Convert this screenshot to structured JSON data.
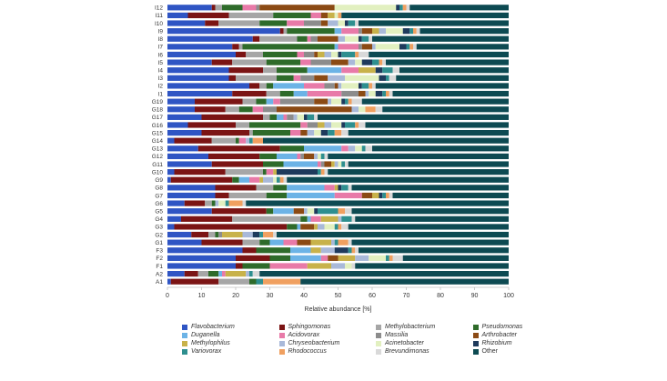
{
  "chart_data": {
    "type": "bar",
    "orientation": "horizontal",
    "stacked": true,
    "title": "",
    "xlabel": "Relative abundance [%]",
    "ylabel": "",
    "xlim": [
      0,
      100
    ],
    "xticks": [
      0,
      10,
      20,
      30,
      40,
      50,
      60,
      70,
      80,
      90,
      100
    ],
    "categories": [
      "I12",
      "I11",
      "I10",
      "I9",
      "I8",
      "I7",
      "I6",
      "I5",
      "I4",
      "I3",
      "I2",
      "I1",
      "G19",
      "G18",
      "G17",
      "G16",
      "G15",
      "G14",
      "G13",
      "G12",
      "G11",
      "G10",
      "G9",
      "G8",
      "G7",
      "G6",
      "G5",
      "G4",
      "G3",
      "G2",
      "G1",
      "F3",
      "F2",
      "F1",
      "A2",
      "A1"
    ],
    "series": [
      {
        "name": "Flavobacterium",
        "color": "#2f55c4",
        "values": [
          13,
          6,
          11,
          33,
          25,
          19,
          20,
          13,
          18,
          18,
          24,
          19,
          8,
          8,
          10,
          6,
          10,
          2,
          9,
          12,
          13,
          2,
          1,
          14,
          14,
          5,
          13,
          4,
          2,
          7,
          10,
          22,
          20,
          20,
          5,
          1
        ]
      },
      {
        "name": "Sphingomonas",
        "color": "#7b1414",
        "values": [
          1,
          12,
          4,
          1,
          2,
          2,
          3,
          6,
          10,
          2,
          3,
          10,
          14,
          9,
          18,
          14,
          14,
          11,
          24,
          15,
          15,
          15,
          18,
          12,
          4,
          6,
          16,
          15,
          33,
          5,
          12,
          4,
          10,
          2,
          4,
          14
        ]
      },
      {
        "name": "Methylobacterium",
        "color": "#a6a6a6",
        "values": [
          2,
          13,
          12,
          1,
          11,
          1,
          5,
          10,
          4,
          12,
          2,
          4,
          4,
          4,
          2,
          4,
          1,
          7,
          0,
          0,
          0,
          11,
          0,
          5,
          11,
          2,
          0,
          20,
          0,
          2,
          5,
          0,
          0,
          0,
          3,
          9
        ]
      },
      {
        "name": "Pseudomonas",
        "color": "#2e6b2a",
        "values": [
          6,
          11,
          8,
          14,
          3,
          27,
          10,
          10,
          9,
          5,
          2,
          4,
          3,
          4,
          2,
          15,
          11,
          1,
          7,
          5,
          6,
          1,
          2,
          4,
          6,
          1,
          2,
          2,
          3,
          1,
          3,
          10,
          6,
          8,
          3,
          2
        ]
      },
      {
        "name": "Duganella",
        "color": "#6cb3e6",
        "values": [
          0,
          0,
          0,
          2,
          0,
          1,
          0,
          0,
          10,
          0,
          9,
          4,
          2,
          0,
          2,
          0,
          0,
          0,
          11,
          6,
          10,
          0,
          3,
          11,
          14,
          0,
          6,
          1,
          1,
          0,
          4,
          6,
          9,
          0,
          1,
          0
        ]
      },
      {
        "name": "Acidovorax",
        "color": "#e87aa8",
        "values": [
          4,
          3,
          5,
          5,
          1,
          6,
          2,
          3,
          5,
          2,
          6,
          10,
          2,
          3,
          1,
          2,
          3,
          2,
          2,
          1,
          1,
          2,
          3,
          3,
          8,
          0,
          0,
          3,
          0,
          0,
          4,
          0,
          2,
          11,
          1,
          0
        ]
      },
      {
        "name": "Massilia",
        "color": "#8c8c8c",
        "values": [
          1,
          0,
          5,
          1,
          2,
          1,
          3,
          6,
          0,
          4,
          3,
          5,
          10,
          4,
          2,
          3,
          0,
          0,
          0,
          1,
          1,
          0,
          0,
          0,
          0,
          0,
          0,
          0,
          0,
          1,
          0,
          0,
          0,
          0,
          0,
          0
        ]
      },
      {
        "name": "Arthrobacter",
        "color": "#8b4a14",
        "values": [
          22,
          2,
          2,
          3,
          6,
          3,
          1,
          5,
          0,
          4,
          1,
          2,
          4,
          22,
          0,
          0,
          2,
          0,
          0,
          3,
          2,
          0,
          0,
          0,
          3,
          0,
          3,
          0,
          4,
          0,
          4,
          0,
          3,
          0,
          0,
          0
        ]
      },
      {
        "name": "Methylophilus",
        "color": "#c8b24a",
        "values": [
          0,
          2,
          0,
          2,
          0,
          0,
          2,
          0,
          5,
          0,
          0,
          0,
          0,
          0,
          0,
          2,
          0,
          0,
          0,
          0,
          1,
          1,
          1,
          1,
          2,
          0,
          0,
          5,
          1,
          6,
          6,
          3,
          5,
          7,
          6,
          0
        ]
      },
      {
        "name": "Chryseobacterium",
        "color": "#a9b9d9",
        "values": [
          0,
          0,
          3,
          2,
          2,
          1,
          2,
          2,
          0,
          5,
          1,
          1,
          1,
          2,
          1,
          2,
          2,
          1,
          2,
          1,
          1,
          0,
          3,
          0,
          0,
          1,
          1,
          1,
          2,
          3,
          1,
          4,
          4,
          4,
          1,
          0
        ]
      },
      {
        "name": "Acinetobacter",
        "color": "#e2f0c0",
        "values": [
          18,
          1,
          2,
          5,
          4,
          7,
          2,
          2,
          0,
          10,
          5,
          2,
          3,
          2,
          2,
          3,
          2,
          0,
          2,
          1,
          1,
          0,
          1,
          0,
          0,
          2,
          2,
          0,
          3,
          0,
          0,
          0,
          5,
          2,
          0,
          0
        ]
      },
      {
        "name": "Rhizobium",
        "color": "#1e3a5c",
        "values": [
          1,
          0,
          1,
          2,
          1,
          2,
          1,
          3,
          2,
          2,
          1,
          2,
          1,
          0,
          1,
          1,
          2,
          0,
          0,
          0,
          0,
          12,
          0,
          1,
          1,
          0,
          1,
          0,
          0,
          2,
          0,
          4,
          0,
          0,
          0,
          0
        ]
      },
      {
        "name": "Variovorax",
        "color": "#2e8f8f",
        "values": [
          1,
          0,
          2,
          1,
          2,
          1,
          4,
          2,
          3,
          1,
          2,
          1,
          1,
          0,
          2,
          3,
          2,
          1,
          1,
          1,
          1,
          1,
          1,
          2,
          1,
          1,
          6,
          3,
          1,
          1,
          1,
          1,
          1,
          0,
          1,
          2
        ]
      },
      {
        "name": "Rhodococcus",
        "color": "#f0a060",
        "values": [
          1,
          1,
          0,
          1,
          0,
          1,
          1,
          1,
          0,
          0,
          1,
          1,
          1,
          3,
          0,
          1,
          2,
          3,
          0,
          0,
          0,
          1,
          1,
          0,
          1,
          4,
          2,
          0,
          1,
          3,
          3,
          1,
          1,
          0,
          0,
          11
        ]
      },
      {
        "name": "Brevundimonas",
        "color": "#d9d9d9",
        "values": [
          1,
          0,
          1,
          1,
          1,
          1,
          3,
          1,
          2,
          2,
          1,
          1,
          3,
          2,
          1,
          2,
          2,
          0,
          2,
          1,
          1,
          1,
          1,
          1,
          1,
          1,
          2,
          1,
          2,
          1,
          1,
          1,
          3,
          1,
          2,
          0
        ]
      },
      {
        "name": "Other",
        "color": "#0d4a52",
        "values": [
          29,
          49,
          44,
          26,
          40,
          27,
          41,
          36,
          32,
          33,
          39,
          34,
          43,
          37,
          56,
          42,
          47,
          72,
          40,
          53,
          47,
          53,
          65,
          46,
          34,
          77,
          46,
          45,
          47,
          68,
          46,
          44,
          31,
          45,
          73,
          61
        ]
      }
    ],
    "legend_position": "bottom"
  }
}
